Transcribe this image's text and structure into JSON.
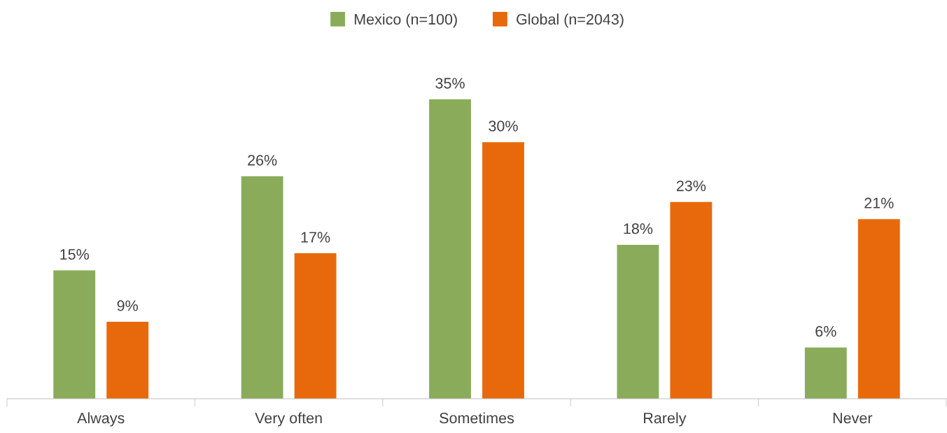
{
  "chart_data": {
    "type": "bar",
    "categories": [
      "Always",
      "Very often",
      "Sometimes",
      "Rarely",
      "Never"
    ],
    "series": [
      {
        "name": "Mexico (n=100)",
        "color": "#8aac5a",
        "values": [
          15,
          26,
          35,
          18,
          6
        ],
        "value_labels": [
          "15%",
          "26%",
          "35%",
          "18%",
          "6%"
        ]
      },
      {
        "name": "Global (n=2043)",
        "color": "#e8690b",
        "values": [
          9,
          17,
          30,
          23,
          21
        ],
        "value_labels": [
          "9%",
          "17%",
          "30%",
          "23%",
          "21%"
        ]
      }
    ],
    "legend": "top"
  }
}
